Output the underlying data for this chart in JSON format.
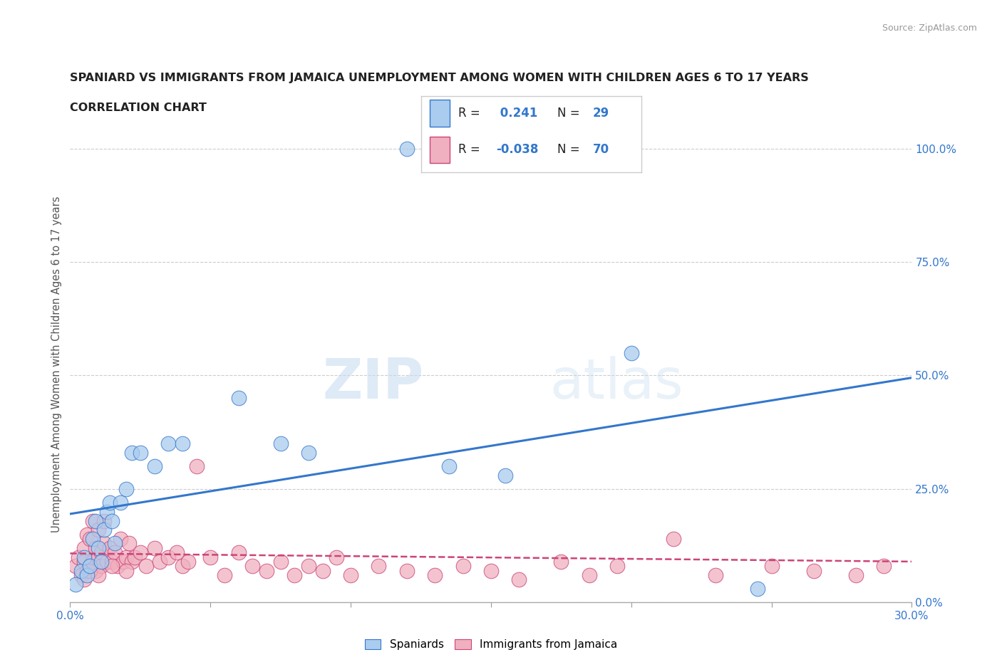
{
  "title_line1": "SPANIARD VS IMMIGRANTS FROM JAMAICA UNEMPLOYMENT AMONG WOMEN WITH CHILDREN AGES 6 TO 17 YEARS",
  "title_line2": "CORRELATION CHART",
  "source_text": "Source: ZipAtlas.com",
  "ylabel": "Unemployment Among Women with Children Ages 6 to 17 years",
  "xlim": [
    0.0,
    0.3
  ],
  "ylim": [
    0.0,
    1.05
  ],
  "xticks": [
    0.0,
    0.05,
    0.1,
    0.15,
    0.2,
    0.25,
    0.3
  ],
  "xticklabels": [
    "0.0%",
    "",
    "",
    "",
    "",
    "",
    "30.0%"
  ],
  "yticks_right": [
    0.0,
    0.25,
    0.5,
    0.75,
    1.0
  ],
  "yticklabels_right": [
    "0.0%",
    "25.0%",
    "50.0%",
    "75.0%",
    "100.0%"
  ],
  "r_spaniard": 0.241,
  "n_spaniard": 29,
  "r_jamaica": -0.038,
  "n_jamaica": 70,
  "watermark_zip": "ZIP",
  "watermark_atlas": "atlas",
  "color_spaniard": "#aaccee",
  "color_jamaica": "#f0b0c0",
  "color_spaniard_line": "#3377cc",
  "color_jamaica_line": "#cc4477",
  "spaniard_x": [
    0.002,
    0.004,
    0.005,
    0.006,
    0.007,
    0.008,
    0.009,
    0.01,
    0.011,
    0.012,
    0.013,
    0.014,
    0.015,
    0.016,
    0.018,
    0.02,
    0.022,
    0.025,
    0.03,
    0.035,
    0.04,
    0.06,
    0.075,
    0.085,
    0.12,
    0.135,
    0.155,
    0.2,
    0.245
  ],
  "spaniard_y": [
    0.04,
    0.07,
    0.1,
    0.06,
    0.08,
    0.14,
    0.18,
    0.12,
    0.09,
    0.16,
    0.2,
    0.22,
    0.18,
    0.13,
    0.22,
    0.25,
    0.33,
    0.33,
    0.3,
    0.35,
    0.35,
    0.45,
    0.35,
    0.33,
    1.0,
    0.3,
    0.28,
    0.55,
    0.03
  ],
  "jamaica_x": [
    0.002,
    0.003,
    0.004,
    0.005,
    0.005,
    0.006,
    0.006,
    0.007,
    0.007,
    0.008,
    0.008,
    0.009,
    0.009,
    0.01,
    0.01,
    0.011,
    0.011,
    0.012,
    0.012,
    0.013,
    0.014,
    0.015,
    0.016,
    0.017,
    0.018,
    0.019,
    0.02,
    0.021,
    0.022,
    0.023,
    0.025,
    0.027,
    0.03,
    0.032,
    0.035,
    0.038,
    0.04,
    0.042,
    0.045,
    0.05,
    0.055,
    0.06,
    0.065,
    0.07,
    0.075,
    0.08,
    0.085,
    0.09,
    0.095,
    0.1,
    0.11,
    0.12,
    0.13,
    0.14,
    0.15,
    0.16,
    0.175,
    0.185,
    0.195,
    0.215,
    0.23,
    0.25,
    0.265,
    0.28,
    0.29,
    0.005,
    0.007,
    0.01,
    0.015,
    0.02
  ],
  "jamaica_y": [
    0.08,
    0.1,
    0.06,
    0.12,
    0.09,
    0.15,
    0.07,
    0.08,
    0.14,
    0.09,
    0.18,
    0.07,
    0.12,
    0.1,
    0.16,
    0.11,
    0.08,
    0.13,
    0.18,
    0.09,
    0.12,
    0.09,
    0.11,
    0.08,
    0.14,
    0.09,
    0.1,
    0.13,
    0.09,
    0.1,
    0.11,
    0.08,
    0.12,
    0.09,
    0.1,
    0.11,
    0.08,
    0.09,
    0.3,
    0.1,
    0.06,
    0.11,
    0.08,
    0.07,
    0.09,
    0.06,
    0.08,
    0.07,
    0.1,
    0.06,
    0.08,
    0.07,
    0.06,
    0.08,
    0.07,
    0.05,
    0.09,
    0.06,
    0.08,
    0.14,
    0.06,
    0.08,
    0.07,
    0.06,
    0.08,
    0.05,
    0.07,
    0.06,
    0.08,
    0.07
  ],
  "legend_r_color": "#3377cc",
  "legend_n_color": "#3377cc",
  "background_color": "#ffffff",
  "grid_color": "#cccccc",
  "spine_color": "#aaaaaa"
}
